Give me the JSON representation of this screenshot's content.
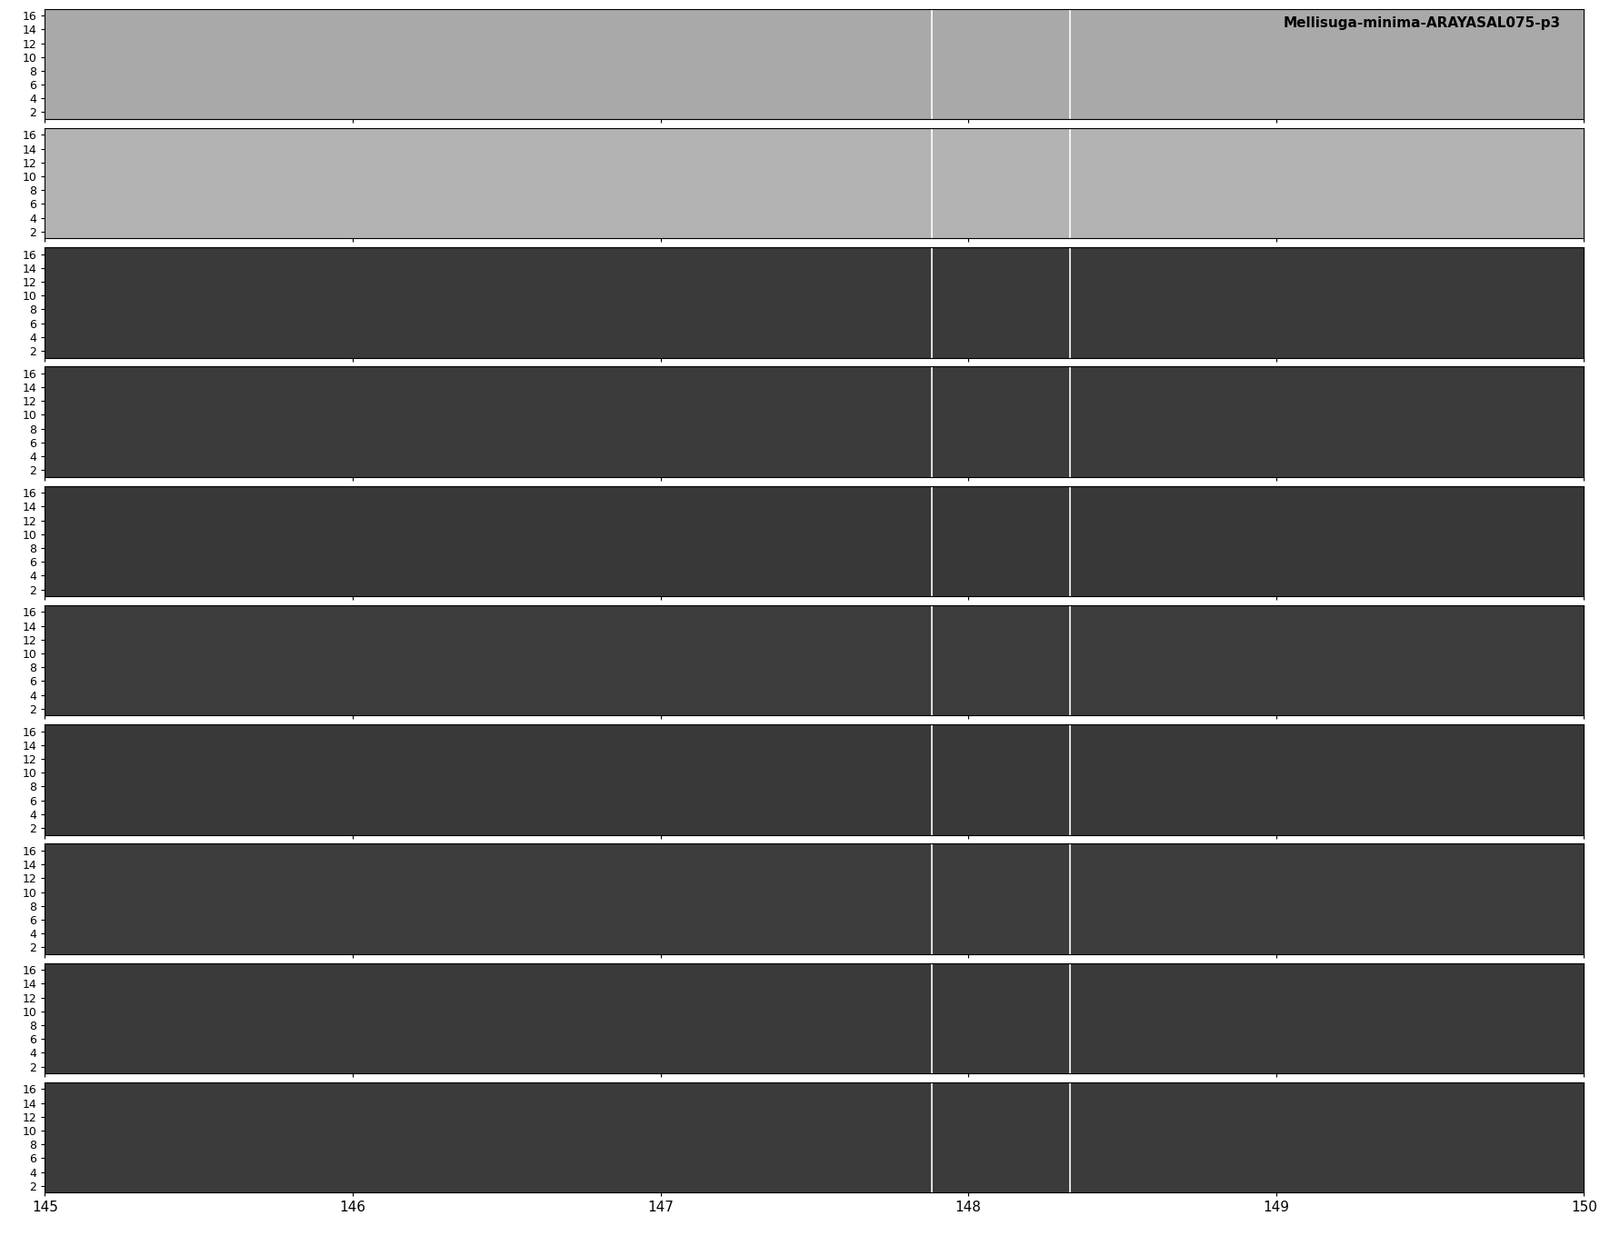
{
  "chart_data": {
    "type": "spectrogram",
    "title": "Mellisuga-minima-ARAYASAL075-p3",
    "xlim": [
      145,
      150
    ],
    "xticks": [
      145,
      146,
      147,
      148,
      149,
      150
    ],
    "ylim": [
      1,
      17
    ],
    "yticks": [
      2,
      4,
      6,
      8,
      10,
      12,
      14,
      16
    ],
    "colors": [
      "#a9a9a9",
      "#b3b3b3",
      "#3a3a3a",
      "#3b3b3b",
      "#383838",
      "#3c3c3c",
      "#393939",
      "#3d3d3d",
      "#3a3a3a",
      "#3b3b3b"
    ],
    "vlines": [
      147.88,
      148.33
    ],
    "grid": false
  }
}
